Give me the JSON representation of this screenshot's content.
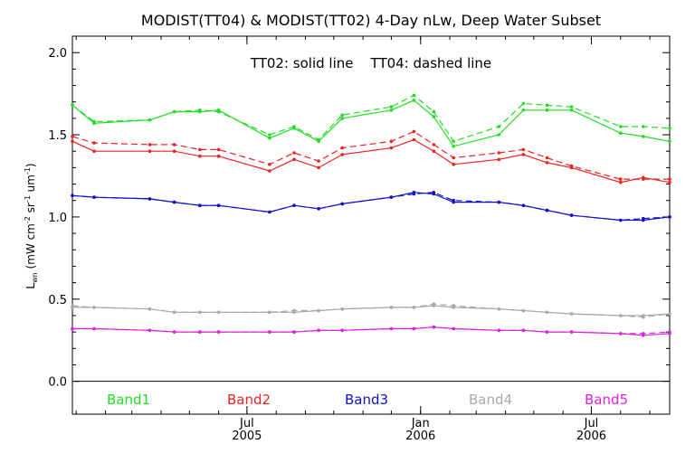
{
  "chart_data": {
    "type": "line",
    "title": "MODIST(TT04) & MODIST(TT02) 4-Day nLw, Deep Water Subset",
    "annotation": "TT02: solid line    TT04: dashed line",
    "ylabel": "L_wn (mW cm⁻² sr⁻¹ um⁻¹)",
    "ylim": [
      -0.2,
      2.1
    ],
    "yticks": [
      0.0,
      0.5,
      1.0,
      1.5,
      2.0
    ],
    "ytick_labels": [
      "0.0",
      "0.5",
      "1.0",
      "1.5",
      "2.0"
    ],
    "xlim": [
      "2004-12-28",
      "2006-09-22"
    ],
    "xticks": [
      {
        "date": "2005-07-01",
        "month": "Jul",
        "year": "2005"
      },
      {
        "date": "2006-01-01",
        "month": "Jan",
        "year": "2006"
      },
      {
        "date": "2006-07-01",
        "month": "Jul",
        "year": "2006"
      }
    ],
    "zero_line": 0.0,
    "x": [
      "2004-12-28",
      "2005-01-10",
      "2005-02-20",
      "2005-03-15",
      "2005-04-06",
      "2005-05-01",
      "2005-05-21",
      "2005-06-15",
      "2005-07-05",
      "2005-07-29",
      "2005-08-20",
      "2005-09-10",
      "2005-10-06",
      "2005-10-28",
      "2005-11-20",
      "2005-12-15",
      "2006-01-02",
      "2006-01-25",
      "2006-02-15",
      "2006-03-15",
      "2006-04-10",
      "2006-05-05",
      "2006-06-01",
      "2006-06-28",
      "2006-07-23",
      "2006-08-20",
      "2006-09-22"
    ],
    "series": [
      {
        "name": "Band1",
        "color": "#22dd22",
        "tt02": [
          1.68,
          1.57,
          1.59,
          1.64,
          1.64,
          1.65,
          1.48,
          1.54,
          1.46,
          1.6,
          1.65,
          1.71,
          1.61,
          1.43,
          1.5,
          1.65,
          1.65,
          1.65,
          1.51,
          1.49,
          1.46
        ],
        "tt04": [
          1.68,
          1.58,
          1.59,
          1.64,
          1.65,
          1.64,
          1.5,
          1.55,
          1.47,
          1.62,
          1.67,
          1.74,
          1.64,
          1.46,
          1.55,
          1.69,
          1.68,
          1.67,
          1.55,
          1.55,
          1.54
        ],
        "x_idx": [
          0,
          1,
          2,
          4,
          5,
          7,
          8,
          10,
          12,
          13,
          15,
          17,
          18,
          20,
          21,
          22,
          23,
          24,
          25,
          26,
          26
        ]
      },
      {
        "name": "Band2",
        "color": "#ee2222",
        "tt02": [
          1.46,
          1.4,
          1.4,
          1.4,
          1.37,
          1.37,
          1.28,
          1.35,
          1.3,
          1.38,
          1.42,
          1.47,
          1.4,
          1.32,
          1.35,
          1.38,
          1.33,
          1.3,
          1.21,
          1.24,
          1.21
        ],
        "tt04": [
          1.49,
          1.45,
          1.44,
          1.44,
          1.41,
          1.41,
          1.32,
          1.39,
          1.34,
          1.42,
          1.46,
          1.52,
          1.44,
          1.36,
          1.39,
          1.41,
          1.36,
          1.31,
          1.23,
          1.23,
          1.23
        ]
      },
      {
        "name": "Band3",
        "color": "#1111cc",
        "tt02": [
          1.13,
          1.12,
          1.11,
          1.09,
          1.07,
          1.07,
          1.03,
          1.07,
          1.05,
          1.08,
          1.12,
          1.15,
          1.14,
          1.09,
          1.09,
          1.07,
          1.04,
          1.01,
          0.98,
          0.98,
          1.0
        ],
        "tt04": [
          1.13,
          1.12,
          1.11,
          1.09,
          1.07,
          1.07,
          1.03,
          1.07,
          1.05,
          1.08,
          1.12,
          1.14,
          1.15,
          1.1,
          1.09,
          1.07,
          1.04,
          1.01,
          0.98,
          0.99,
          1.0
        ]
      },
      {
        "name": "Band4",
        "color": "#a8a8a8",
        "tt02": [
          0.45,
          0.45,
          0.44,
          0.42,
          0.42,
          0.42,
          0.42,
          0.42,
          0.43,
          0.44,
          0.45,
          0.45,
          0.46,
          0.45,
          0.44,
          0.43,
          0.42,
          0.41,
          0.4,
          0.4,
          0.41
        ],
        "tt04": [
          0.46,
          0.45,
          0.44,
          0.42,
          0.42,
          0.42,
          0.42,
          0.43,
          0.43,
          0.44,
          0.45,
          0.45,
          0.47,
          0.46,
          0.44,
          0.43,
          0.42,
          0.41,
          0.4,
          0.39,
          0.41
        ]
      },
      {
        "name": "Band5",
        "color": "#dd22dd",
        "tt02": [
          0.32,
          0.32,
          0.31,
          0.3,
          0.3,
          0.3,
          0.3,
          0.3,
          0.31,
          0.31,
          0.32,
          0.32,
          0.33,
          0.32,
          0.31,
          0.31,
          0.3,
          0.3,
          0.29,
          0.28,
          0.29
        ],
        "tt04": [
          0.32,
          0.32,
          0.31,
          0.3,
          0.3,
          0.3,
          0.3,
          0.3,
          0.31,
          0.31,
          0.32,
          0.32,
          0.33,
          0.32,
          0.31,
          0.31,
          0.3,
          0.3,
          0.29,
          0.29,
          0.3
        ]
      }
    ],
    "series_x": [
      "2004-12-28",
      "2005-01-20",
      "2005-02-20",
      "2005-03-20",
      "2005-04-15",
      "2005-05-12",
      "2005-06-01",
      "2005-06-28",
      "2005-07-25",
      "2005-08-20",
      "2005-09-15",
      "2005-10-10",
      "2005-11-05",
      "2005-12-01",
      "2005-12-25",
      "2006-01-15",
      "2006-02-05",
      "2006-03-01",
      "2006-03-25",
      "2006-04-20",
      "2006-05-15",
      "2006-06-10",
      "2006-07-05",
      "2006-08-01",
      "2006-08-25",
      "2006-09-22"
    ],
    "legend": [
      "Band1",
      "Band2",
      "Band3",
      "Band4",
      "Band5"
    ],
    "grid": false
  }
}
